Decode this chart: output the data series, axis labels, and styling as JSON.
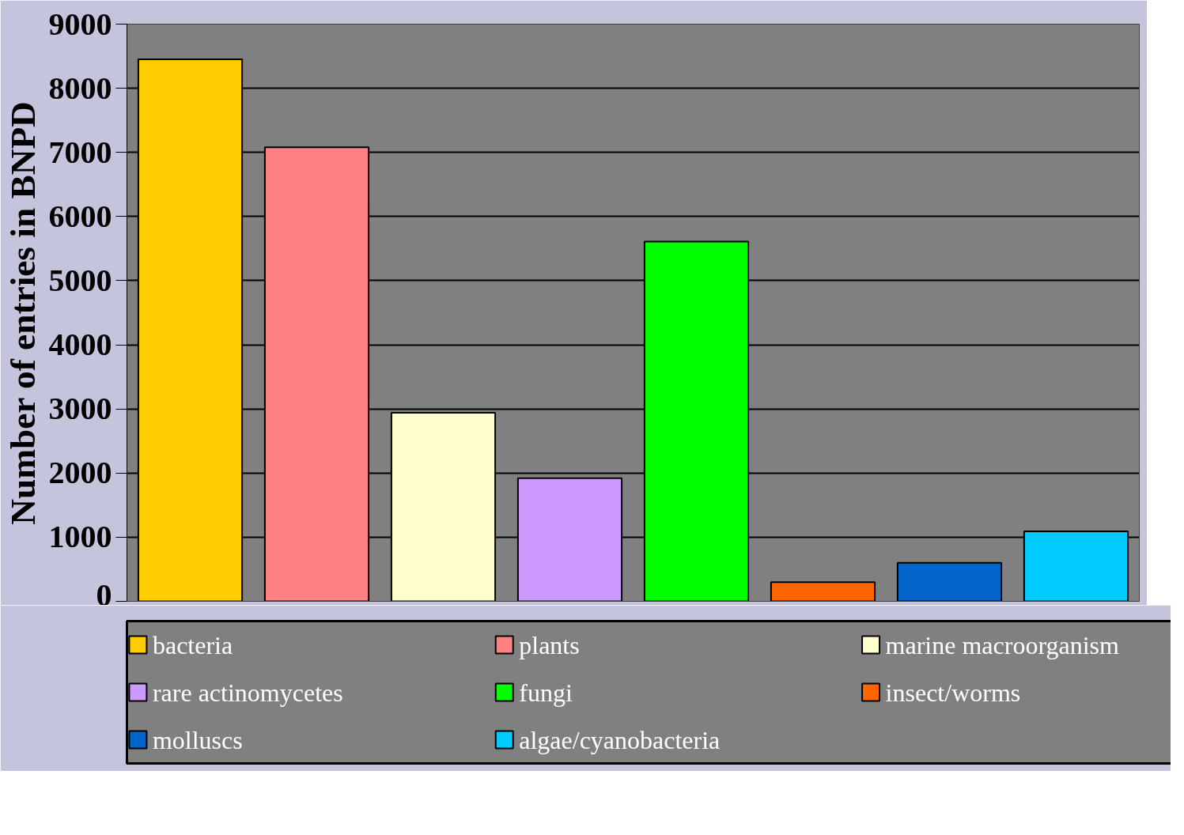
{
  "chart_data": {
    "type": "bar",
    "ylabel": "Number of entries in BNPD",
    "categories": [
      null,
      null,
      null,
      null,
      null,
      null,
      null,
      null
    ],
    "series": [
      {
        "name": "bacteria",
        "color": "#ffcc00",
        "values": [
          8450,
          null,
          null,
          null,
          null,
          null,
          null,
          null
        ]
      },
      {
        "name": "plants",
        "color": "#ff8080",
        "values": [
          null,
          7080,
          null,
          null,
          null,
          null,
          null,
          null
        ]
      },
      {
        "name": "marine macroorganism",
        "color": "#ffffcc",
        "values": [
          null,
          null,
          2940,
          null,
          null,
          null,
          null,
          null
        ]
      },
      {
        "name": "rare actinomycetes",
        "color": "#cc99ff",
        "values": [
          null,
          null,
          null,
          1920,
          null,
          null,
          null,
          null
        ]
      },
      {
        "name": "fungi",
        "color": "#00ff00",
        "values": [
          null,
          null,
          null,
          null,
          5610,
          null,
          null,
          null
        ]
      },
      {
        "name": "insect/worms",
        "color": "#ff6600",
        "values": [
          null,
          null,
          null,
          null,
          null,
          300,
          null,
          null
        ]
      },
      {
        "name": "molluscs",
        "color": "#0066cc",
        "values": [
          null,
          null,
          null,
          null,
          null,
          null,
          600,
          null
        ]
      },
      {
        "name": "algae/cyanobacteria",
        "color": "#00ccff",
        "values": [
          null,
          null,
          null,
          null,
          null,
          null,
          null,
          1090
        ]
      }
    ],
    "ylim": [
      0,
      9000
    ],
    "yticks": [
      0,
      1000,
      2000,
      3000,
      4000,
      5000,
      6000,
      7000,
      8000,
      9000
    ],
    "grid": "y",
    "legend": "bottom"
  }
}
